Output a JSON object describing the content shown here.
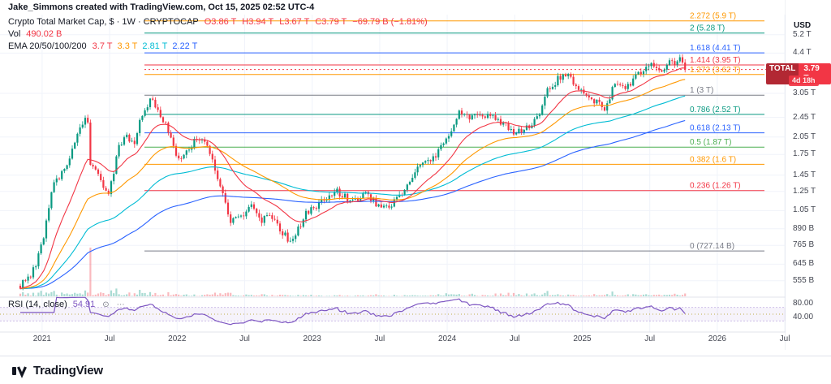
{
  "attribution": {
    "text": "Jake_Simmons created with TradingView.com, Oct 15, 2025 02:52 UTC-4"
  },
  "legend": {
    "title": "Crypto Total Market Cap, $ · 1W · CRYPTOCAP",
    "ohlc": {
      "o": "O3.86 T",
      "h": "H3.94 T",
      "l": "L3.67 T",
      "c": "C3.79 T",
      "change": "−69.79 B (−1.81%)"
    },
    "vol_label": "Vol",
    "vol_value": "490.02 B",
    "ema_label": "EMA 20/50/100/200",
    "ema_values": [
      {
        "text": "3.7 T",
        "color": "#f23645"
      },
      {
        "text": "3.3 T",
        "color": "#ff9800"
      },
      {
        "text": "2.81 T",
        "color": "#00bcd4"
      },
      {
        "text": "2.22 T",
        "color": "#2962ff"
      }
    ]
  },
  "rsi_legend": {
    "label": "RSI (14, close)",
    "value": "54.91"
  },
  "badge": {
    "total_label": "TOTAL",
    "price": "3.79 T",
    "price_value": 3.79,
    "countdown": "4d 18h",
    "color": "#f23645"
  },
  "price_axis": {
    "currency": "USD",
    "ticks": [
      {
        "label": "5.2 T",
        "v": 5.2
      },
      {
        "label": "4.4 T",
        "v": 4.4
      },
      {
        "label": "3.05 T",
        "v": 3.05
      },
      {
        "label": "2.45 T",
        "v": 2.45
      },
      {
        "label": "2.05 T",
        "v": 2.05
      },
      {
        "label": "1.75 T",
        "v": 1.75
      },
      {
        "label": "1.45 T",
        "v": 1.45
      },
      {
        "label": "1.25 T",
        "v": 1.25
      },
      {
        "label": "1.05 T",
        "v": 1.05
      },
      {
        "label": "890 B",
        "v": 0.89
      },
      {
        "label": "765 B",
        "v": 0.765
      },
      {
        "label": "645 B",
        "v": 0.645
      },
      {
        "label": "555 B",
        "v": 0.555
      }
    ]
  },
  "rsi_axis": {
    "ticks": [
      {
        "label": "80.00",
        "r": 80
      },
      {
        "label": "40.00",
        "r": 40
      }
    ]
  },
  "time_axis": {
    "ticks": [
      {
        "label": "2021",
        "week": 8.4
      },
      {
        "label": "Jul",
        "week": 34.4
      },
      {
        "label": "2022",
        "week": 60.4
      },
      {
        "label": "Jul",
        "week": 86.4
      },
      {
        "label": "2023",
        "week": 112.4
      },
      {
        "label": "Jul",
        "week": 138.4
      },
      {
        "label": "2024",
        "week": 164.4
      },
      {
        "label": "Jul",
        "week": 190.4
      },
      {
        "label": "2025",
        "week": 216.4
      },
      {
        "label": "Jul",
        "week": 242.4
      },
      {
        "label": "2026",
        "week": 268.4
      },
      {
        "label": "Jul",
        "week": 294.4
      }
    ]
  },
  "fib_levels": [
    {
      "ratio": "2.272",
      "label": "2.272 (5.9 T)",
      "v": 5.9,
      "color": "#ff9800"
    },
    {
      "ratio": "2",
      "label": "2 (5.28 T)",
      "v": 5.28,
      "color": "#089981"
    },
    {
      "ratio": "1.618",
      "label": "1.618 (4.41 T)",
      "v": 4.41,
      "color": "#2962ff"
    },
    {
      "ratio": "1.414",
      "label": "1.414 (3.95 T)",
      "v": 3.95,
      "color": "#f23645"
    },
    {
      "ratio": "1.272",
      "label": "1.272 (3.62 T)",
      "v": 3.62,
      "color": "#ff9800"
    },
    {
      "ratio": "1",
      "label": "1 (3 T)",
      "v": 3.0,
      "color": "#787b86"
    },
    {
      "ratio": "0.786",
      "label": "0.786 (2.52 T)",
      "v": 2.52,
      "color": "#089981"
    },
    {
      "ratio": "0.618",
      "label": "0.618 (2.13 T)",
      "v": 2.13,
      "color": "#2962ff"
    },
    {
      "ratio": "0.5",
      "label": "0.5 (1.87 T)",
      "v": 1.87,
      "color": "#4caf50"
    },
    {
      "ratio": "0.382",
      "label": "0.382 (1.6 T)",
      "v": 1.6,
      "color": "#ff9800"
    },
    {
      "ratio": "0.236",
      "label": "0.236 (1.26 T)",
      "v": 1.26,
      "color": "#f23645"
    },
    {
      "ratio": "0",
      "label": "0 (727.14 B)",
      "v": 0.72714,
      "color": "#787b86"
    }
  ],
  "chart_data": {
    "type": "candlestick+volume+rsi",
    "title": "Crypto Total Market Cap",
    "symbol": "CRYPTOCAP:TOTAL",
    "interval": "1W",
    "y_scale": "log",
    "y_axis_unit": "USD",
    "y_range_T": [
      0.5,
      5.5
    ],
    "x_range": [
      "Nov 2020",
      "Jul 2026"
    ],
    "weeks_total": 257,
    "current": {
      "open_T": 3.86,
      "high_T": 3.94,
      "low_T": 3.67,
      "close_T": 3.79,
      "change_B": -69.79,
      "change_pct": -1.81,
      "volume_B": 490.02
    },
    "ema_periods": [
      20,
      50,
      100,
      200
    ],
    "ema_current_T": [
      3.7,
      3.3,
      2.81,
      2.22
    ],
    "rsi": {
      "period": 14,
      "current": 54.91,
      "band": [
        30,
        70
      ]
    },
    "anchors": [
      [
        0,
        0.53
      ],
      [
        4,
        0.57
      ],
      [
        8,
        0.75
      ],
      [
        10,
        0.95
      ],
      [
        13,
        1.35
      ],
      [
        17,
        1.5
      ],
      [
        21,
        1.95
      ],
      [
        23,
        2.2
      ],
      [
        25,
        2.45
      ],
      [
        26,
        2.28
      ],
      [
        27,
        1.6
      ],
      [
        30,
        1.42
      ],
      [
        34,
        1.22
      ],
      [
        38,
        1.85
      ],
      [
        41,
        2.1
      ],
      [
        44,
        1.9
      ],
      [
        47,
        2.55
      ],
      [
        51,
        2.95
      ],
      [
        53,
        2.62
      ],
      [
        56,
        2.3
      ],
      [
        60,
        1.78
      ],
      [
        62,
        1.68
      ],
      [
        65,
        1.88
      ],
      [
        69,
        2.05
      ],
      [
        73,
        1.78
      ],
      [
        77,
        1.32
      ],
      [
        81,
        0.93
      ],
      [
        85,
        1.0
      ],
      [
        89,
        1.12
      ],
      [
        93,
        0.96
      ],
      [
        97,
        1.0
      ],
      [
        101,
        0.84
      ],
      [
        105,
        0.8
      ],
      [
        110,
        1.04
      ],
      [
        114,
        1.1
      ],
      [
        118,
        1.17
      ],
      [
        122,
        1.26
      ],
      [
        126,
        1.16
      ],
      [
        130,
        1.18
      ],
      [
        134,
        1.22
      ],
      [
        138,
        1.09
      ],
      [
        142,
        1.06
      ],
      [
        147,
        1.25
      ],
      [
        151,
        1.45
      ],
      [
        156,
        1.65
      ],
      [
        160,
        1.72
      ],
      [
        164,
        2.0
      ],
      [
        169,
        2.6
      ],
      [
        173,
        2.45
      ],
      [
        177,
        2.55
      ],
      [
        182,
        2.45
      ],
      [
        186,
        2.35
      ],
      [
        190,
        2.12
      ],
      [
        195,
        2.25
      ],
      [
        199,
        2.42
      ],
      [
        203,
        3.1
      ],
      [
        208,
        3.55
      ],
      [
        212,
        3.5
      ],
      [
        216,
        3.15
      ],
      [
        221,
        2.85
      ],
      [
        225,
        2.68
      ],
      [
        229,
        3.3
      ],
      [
        234,
        3.28
      ],
      [
        238,
        3.7
      ],
      [
        243,
        3.92
      ],
      [
        247,
        3.82
      ],
      [
        251,
        4.05
      ],
      [
        254,
        4.12
      ],
      [
        256,
        3.79
      ]
    ],
    "colors": {
      "up": "#089981",
      "down": "#f23645",
      "vol_up": "rgba(8,153,129,0.35)",
      "vol_down": "rgba(242,54,69,0.35)",
      "ema20": "#f23645",
      "ema50": "#ff9800",
      "ema100": "#00bcd4",
      "ema200": "#2962ff",
      "rsi": "#7e57c2"
    }
  },
  "footer": {
    "brand": "TradingView"
  }
}
